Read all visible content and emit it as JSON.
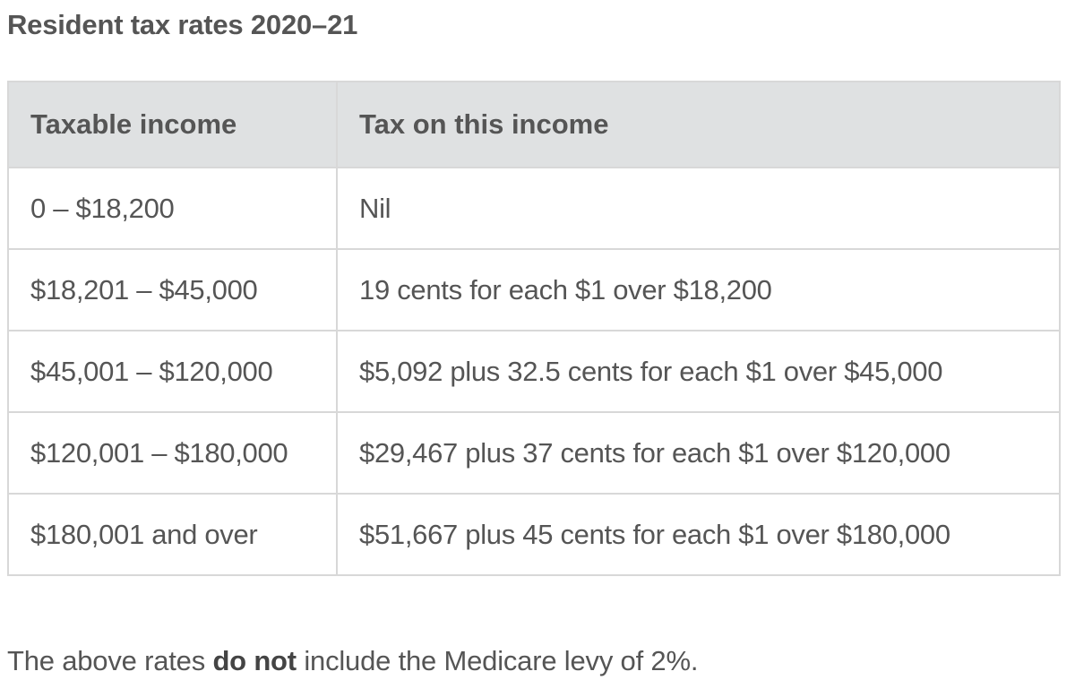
{
  "title": "Resident tax rates 2020–21",
  "table": {
    "headers": [
      "Taxable income",
      "Tax on this income"
    ],
    "rows": [
      [
        "0 – $18,200",
        "Nil"
      ],
      [
        "$18,201 – $45,000",
        "19  cents for each $1 over $18,200"
      ],
      [
        "$45,001 – $120,000",
        "$5,092 plus 32.5  cents for each $1 over $45,000"
      ],
      [
        "$120,001 – $180,000",
        "$29,467  plus 37  cents for each $1 over $120,000"
      ],
      [
        "$180,001 and over",
        "$51,667  plus 45  cents for each $1 over $180,000"
      ]
    ]
  },
  "note": {
    "before": "The above rates ",
    "bold": "do not",
    "after": " include the Medicare levy of 2%."
  },
  "colors": {
    "text": "#555555",
    "header_bg": "#dfe1e2",
    "border": "#d8d8d8"
  }
}
